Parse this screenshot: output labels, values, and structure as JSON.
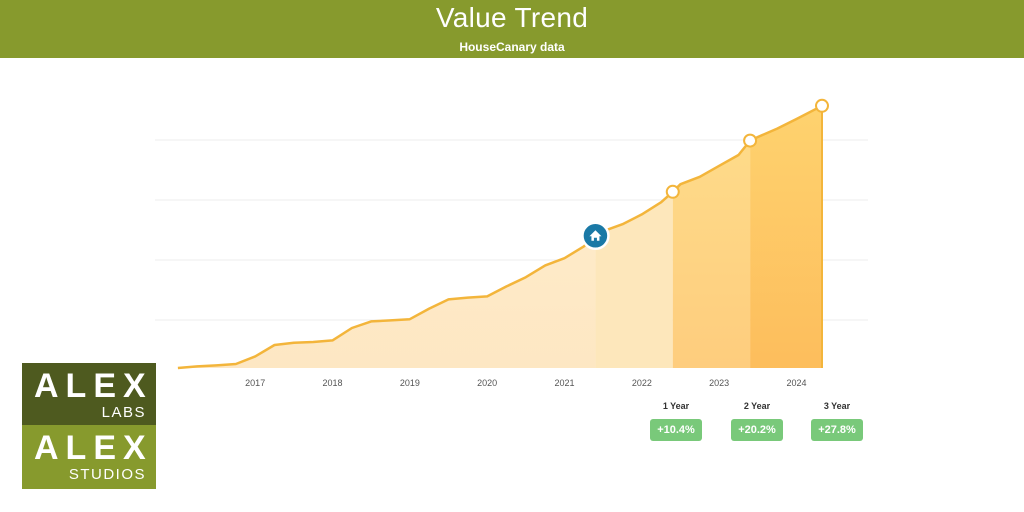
{
  "header": {
    "title": "Value Trend",
    "subtitle": "HouseCanary data"
  },
  "chart_data": {
    "type": "area",
    "x": [
      2016.0,
      2016.25,
      2016.5,
      2016.75,
      2017.0,
      2017.25,
      2017.5,
      2017.75,
      2018.0,
      2018.25,
      2018.5,
      2018.75,
      2019.0,
      2019.25,
      2019.5,
      2019.75,
      2020.0,
      2020.25,
      2020.5,
      2020.75,
      2021.0,
      2021.25,
      2021.4,
      2021.5,
      2021.75,
      2022.0,
      2022.25,
      2022.4,
      2022.5,
      2022.75,
      2023.0,
      2023.25,
      2023.4,
      2023.5,
      2023.75,
      2024.0,
      2024.33
    ],
    "y": [
      0,
      0.8,
      1.3,
      2.0,
      5.8,
      11.5,
      12.6,
      13.0,
      13.8,
      20.0,
      23.3,
      23.8,
      24.4,
      29.7,
      34.3,
      35.2,
      35.8,
      40.8,
      45.4,
      51.3,
      54.9,
      60.8,
      66.1,
      68.4,
      71.9,
      76.8,
      82.9,
      88.1,
      91.9,
      95.6,
      101.1,
      106.5,
      113.7,
      115.5,
      119.7,
      124.5,
      131.1
    ],
    "x_ticks": [
      "2017",
      "2018",
      "2019",
      "2020",
      "2021",
      "2022",
      "2023",
      "2024"
    ],
    "x_tick_values": [
      2017,
      2018,
      2019,
      2020,
      2021,
      2022,
      2023,
      2024
    ],
    "xlim": [
      2015.95,
      2024.33
    ],
    "ylim": [
      0,
      130
    ],
    "grid": true,
    "current_marker": {
      "x": 2021.4,
      "icon": "house-icon"
    },
    "period_markers": [
      2022.4,
      2023.4,
      2024.33
    ],
    "colors": {
      "line": "#f3b53b",
      "fill_light": "#fde9c4",
      "fill_mid": "#fedb93",
      "fill_strong": "#fdc668",
      "marker": "#1a79a6",
      "badge": "#79c97a"
    }
  },
  "stats": [
    {
      "label": "1 Year",
      "value": "+10.4%"
    },
    {
      "label": "2 Year",
      "value": "+20.2%"
    },
    {
      "label": "3 Year",
      "value": "+27.8%"
    }
  ],
  "logo": {
    "top_big": "ALEX",
    "top_small": "LABS",
    "bottom_big": "ALEX",
    "bottom_small": "STUDIOS"
  }
}
